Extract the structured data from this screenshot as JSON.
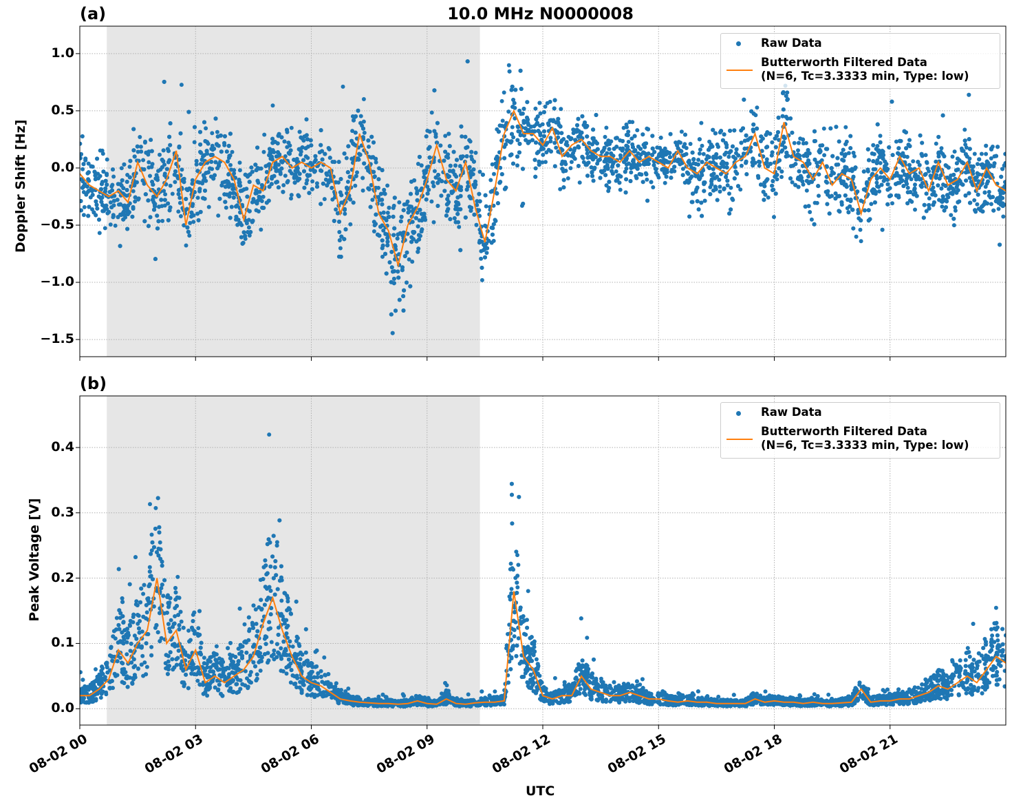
{
  "chart_data": {
    "title": "10.0 MHz N0000008",
    "xlabel": "UTC",
    "x_tick_labels": [
      "08-02 00",
      "08-02 03",
      "08-02 06",
      "08-02 09",
      "08-02 12",
      "08-02 15",
      "08-02 18",
      "08-02 21"
    ],
    "x_tick_hours": [
      0,
      3,
      6,
      9,
      12,
      15,
      18,
      21
    ],
    "xlim_hours": [
      0,
      24
    ],
    "x_sample_hours_step": 0.25,
    "shaded_interval_hours": [
      0.7,
      10.37
    ],
    "shade_color": "#e6e6e6",
    "grid": true,
    "legend_position": "top-right",
    "panels": [
      {
        "tag": "(a)",
        "type": "scatter+line",
        "ylabel": "Doppler Shift [Hz]",
        "ylim": [
          -1.65,
          1.24
        ],
        "y_ticks": [
          -1.5,
          -1.0,
          -0.5,
          0.0,
          0.5,
          1.0
        ],
        "y_tick_labels": [
          "−1.5",
          "−1.0",
          "−0.5",
          "0.0",
          "0.5",
          "1.0"
        ],
        "series": [
          {
            "name": "Raw Data",
            "type": "scatter",
            "color": "#1f77b4",
            "spread_hourly": [
              0.3,
              0.3,
              0.4,
              0.45,
              0.35,
              0.3,
              0.3,
              0.4,
              0.45,
              0.4,
              0.4,
              0.45,
              0.3,
              0.25,
              0.25,
              0.25,
              0.3,
              0.35,
              0.35,
              0.35,
              0.35,
              0.3,
              0.3,
              0.3,
              0.3
            ]
          },
          {
            "name": "Butterworth Filtered Data\n(N=6, Tc=3.3333 min, Type: low)",
            "name_lines": [
              "Butterworth Filtered Data",
              "(N=6, Tc=3.3333 min, Type: low)"
            ],
            "type": "line",
            "color": "#ff7f0e",
            "values": [
              -0.05,
              -0.15,
              -0.2,
              -0.25,
              -0.2,
              -0.3,
              0.05,
              -0.15,
              -0.25,
              -0.1,
              0.15,
              -0.5,
              -0.1,
              0.05,
              0.1,
              0.05,
              -0.1,
              -0.45,
              -0.15,
              -0.2,
              0.05,
              0.1,
              0.0,
              0.05,
              0.0,
              0.05,
              0.0,
              -0.4,
              -0.2,
              0.3,
              0.05,
              -0.4,
              -0.55,
              -0.85,
              -0.5,
              -0.35,
              -0.1,
              0.2,
              -0.1,
              -0.2,
              0.05,
              -0.35,
              -0.65,
              -0.2,
              0.3,
              0.5,
              0.3,
              0.3,
              0.2,
              0.35,
              0.1,
              0.2,
              0.25,
              0.15,
              0.1,
              0.1,
              0.05,
              0.15,
              0.05,
              0.1,
              0.05,
              0.0,
              0.15,
              0.0,
              -0.05,
              0.05,
              0.0,
              -0.05,
              0.05,
              0.1,
              0.3,
              0.0,
              -0.05,
              0.4,
              0.1,
              0.05,
              -0.1,
              0.05,
              -0.15,
              -0.05,
              -0.1,
              -0.4,
              -0.1,
              0.0,
              -0.1,
              0.1,
              -0.05,
              0.0,
              -0.2,
              0.05,
              -0.15,
              -0.1,
              0.05,
              -0.2,
              0.0,
              -0.15,
              -0.2
            ]
          }
        ]
      },
      {
        "tag": "(b)",
        "type": "scatter+line",
        "ylabel": "Peak Voltage [V]",
        "ylim": [
          -0.025,
          0.479
        ],
        "y_ticks": [
          0.0,
          0.1,
          0.2,
          0.3,
          0.4
        ],
        "y_tick_labels": [
          "0.0",
          "0.1",
          "0.2",
          "0.3",
          "0.4"
        ],
        "series": [
          {
            "name": "Raw Data",
            "type": "scatter",
            "color": "#1f77b4"
          },
          {
            "name": "Butterworth Filtered Data\n(N=6, Tc=3.3333 min, Type: low)",
            "name_lines": [
              "Butterworth Filtered Data",
              "(N=6, Tc=3.3333 min, Type: low)"
            ],
            "type": "line",
            "color": "#ff7f0e",
            "values": [
              0.02,
              0.02,
              0.03,
              0.045,
              0.09,
              0.07,
              0.1,
              0.12,
              0.2,
              0.1,
              0.12,
              0.06,
              0.09,
              0.04,
              0.05,
              0.04,
              0.05,
              0.06,
              0.08,
              0.13,
              0.17,
              0.12,
              0.08,
              0.05,
              0.04,
              0.035,
              0.025,
              0.015,
              0.012,
              0.01,
              0.009,
              0.008,
              0.008,
              0.007,
              0.008,
              0.012,
              0.008,
              0.007,
              0.015,
              0.008,
              0.007,
              0.009,
              0.01,
              0.01,
              0.012,
              0.18,
              0.08,
              0.06,
              0.02,
              0.015,
              0.02,
              0.02,
              0.05,
              0.03,
              0.025,
              0.02,
              0.02,
              0.025,
              0.02,
              0.015,
              0.015,
              0.012,
              0.01,
              0.012,
              0.01,
              0.01,
              0.008,
              0.008,
              0.008,
              0.008,
              0.015,
              0.01,
              0.012,
              0.01,
              0.01,
              0.008,
              0.01,
              0.008,
              0.008,
              0.009,
              0.01,
              0.03,
              0.01,
              0.012,
              0.012,
              0.015,
              0.015,
              0.02,
              0.025,
              0.035,
              0.03,
              0.04,
              0.05,
              0.04,
              0.06,
              0.08,
              0.07
            ]
          }
        ]
      }
    ]
  }
}
